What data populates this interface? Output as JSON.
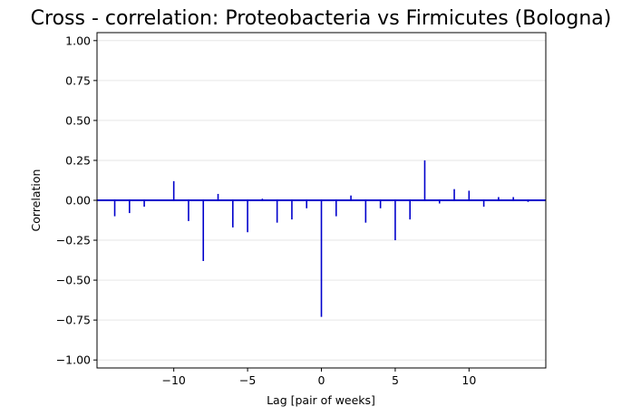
{
  "chart_data": {
    "type": "bar",
    "title": "Cross - correlation: Proteobacteria vs Firmicutes (Bologna)",
    "xlabel": "Lag [pair of weeks]",
    "ylabel": "Correlation",
    "xlim": [
      -15.2,
      15.2
    ],
    "ylim": [
      -1.05,
      1.05
    ],
    "xticks": [
      -10,
      -5,
      0,
      5,
      10
    ],
    "xtick_labels": [
      "−10",
      "−5",
      "0",
      "5",
      "10"
    ],
    "yticks": [
      -1.0,
      -0.75,
      -0.5,
      -0.25,
      0.0,
      0.25,
      0.5,
      0.75,
      1.0
    ],
    "ytick_labels": [
      "−1.00",
      "−0.75",
      "−0.50",
      "−0.25",
      "0.00",
      "0.25",
      "0.50",
      "0.75",
      "1.00"
    ],
    "grid": "horizontal",
    "line_color": "#0000cc",
    "lags": [
      -14,
      -13,
      -12,
      -11,
      -10,
      -9,
      -8,
      -7,
      -6,
      -5,
      -4,
      -3,
      -2,
      -1,
      0,
      1,
      2,
      3,
      4,
      5,
      6,
      7,
      8,
      9,
      10,
      11,
      12,
      13,
      14
    ],
    "values": [
      -0.1,
      -0.08,
      -0.04,
      0.0,
      0.12,
      -0.13,
      -0.38,
      0.04,
      -0.17,
      -0.2,
      0.01,
      -0.14,
      -0.12,
      -0.05,
      -0.73,
      -0.1,
      0.03,
      -0.14,
      -0.05,
      -0.25,
      -0.12,
      0.25,
      -0.02,
      0.07,
      0.06,
      -0.04,
      0.02,
      0.02,
      -0.01
    ]
  }
}
